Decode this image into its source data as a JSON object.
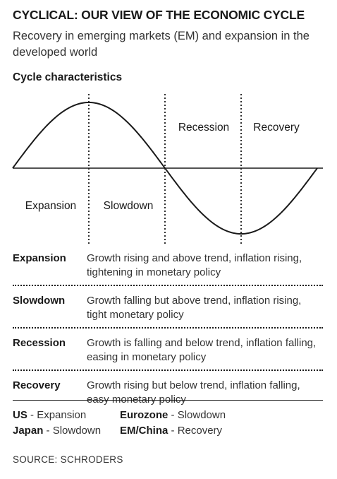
{
  "header": {
    "title": "CYCLICAL: OUR VIEW OF THE ECONOMIC CYCLE",
    "subtitle": "Recovery in emerging markets (EM) and expansion in the developed world",
    "section_title": "Cycle characteristics"
  },
  "diagram": {
    "phases": [
      "Expansion",
      "Slowdown",
      "Recession",
      "Recovery"
    ]
  },
  "table": [
    {
      "name": "Expansion",
      "description": "Growth rising and above trend, inflation rising, tightening in monetary policy"
    },
    {
      "name": "Slowdown",
      "description": "Growth falling but above trend, inflation rising, tight monetary policy"
    },
    {
      "name": "Recession",
      "description": "Growth is falling and below trend, inflation falling, easing in monetary policy"
    },
    {
      "name": "Recovery",
      "description": "Growth rising but below trend, inflation falling, easy monetary policy"
    }
  ],
  "regions": [
    {
      "name": "US",
      "separator": " - ",
      "phase": "Expansion"
    },
    {
      "name": "Eurozone",
      "separator": " - ",
      "phase": "Slowdown"
    },
    {
      "name": "Japan",
      "separator": " - ",
      "phase": "Slowdown"
    },
    {
      "name": "EM/China",
      "separator": " - ",
      "phase": "Recovery"
    }
  ],
  "source": "SOURCE: SCHRODERS",
  "colors": {
    "text": "#1a1a1a",
    "background": "#ffffff"
  }
}
